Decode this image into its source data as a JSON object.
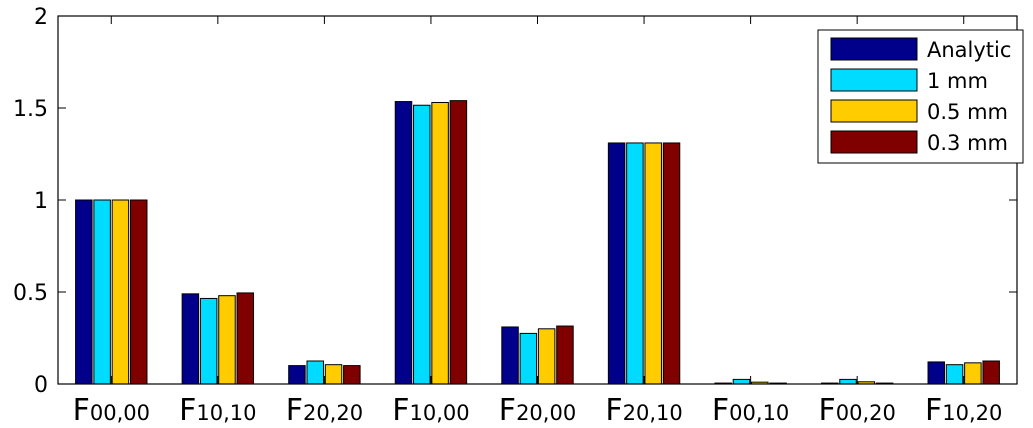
{
  "chart_data": {
    "type": "bar",
    "categories": [
      {
        "base": "F",
        "sub": "00,00"
      },
      {
        "base": "F",
        "sub": "10,10"
      },
      {
        "base": "F",
        "sub": "20,20"
      },
      {
        "base": "F",
        "sub": "10,00"
      },
      {
        "base": "F",
        "sub": "20,00"
      },
      {
        "base": "F",
        "sub": "20,10"
      },
      {
        "base": "F",
        "sub": "00,10"
      },
      {
        "base": "F",
        "sub": "00,20"
      },
      {
        "base": "F",
        "sub": "10,20"
      }
    ],
    "series": [
      {
        "name": "Analytic",
        "color": "#00008b",
        "values": [
          1.0,
          0.49,
          0.1,
          1.535,
          0.31,
          1.31,
          0.005,
          0.005,
          0.12
        ]
      },
      {
        "name": "1 mm",
        "color": "#00dcff",
        "values": [
          1.0,
          0.465,
          0.125,
          1.515,
          0.275,
          1.31,
          0.025,
          0.025,
          0.105
        ]
      },
      {
        "name": "0.5 mm",
        "color": "#ffcc00",
        "values": [
          1.0,
          0.48,
          0.105,
          1.53,
          0.3,
          1.31,
          0.01,
          0.012,
          0.115
        ]
      },
      {
        "name": "0.3 mm",
        "color": "#800000",
        "values": [
          1.0,
          0.495,
          0.1,
          1.54,
          0.315,
          1.31,
          0.005,
          0.005,
          0.125
        ]
      }
    ],
    "ylim": [
      0,
      2
    ],
    "yticks": [
      "0",
      "0.5",
      "1",
      "1.5",
      "2"
    ],
    "title": "",
    "xlabel": "",
    "ylabel": "",
    "legend": "top-right",
    "grid": false
  }
}
